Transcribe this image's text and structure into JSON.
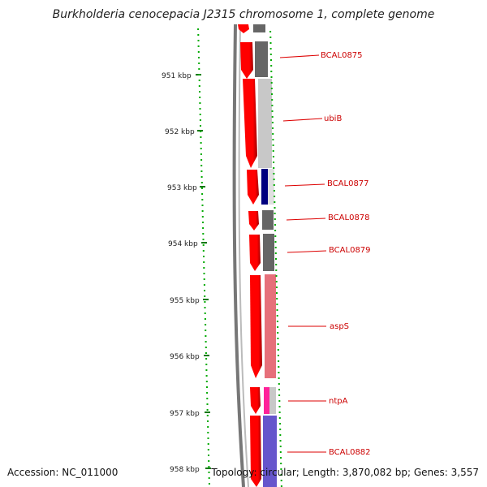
{
  "title": "Burkholderia cenocepacia J2315 chromosome 1, complete genome",
  "footer": {
    "accession": "Accession: NC_011000",
    "stats": "Topology: circular; Length: 3,870,082 bp; Genes: 3,557"
  },
  "ruler": {
    "ticks": [
      "951 kbp",
      "952 kbp",
      "953 kbp",
      "954 kbp",
      "955 kbp",
      "956 kbp",
      "957 kbp",
      "958 kbp"
    ]
  },
  "genes": [
    {
      "label": "",
      "color": "#666666"
    },
    {
      "label": "BCAL0875",
      "color": "#666666"
    },
    {
      "label": "ubiB",
      "color": "#c8c8c8"
    },
    {
      "label": "BCAL0877",
      "color": "#00007f"
    },
    {
      "label": "BCAL0878",
      "color": "#666666"
    },
    {
      "label": "BCAL0879",
      "color": "#666666"
    },
    {
      "label": "aspS",
      "color": "#e6707a"
    },
    {
      "label": "ntpA",
      "color": "#ff2299"
    },
    {
      "label": "BCAL0882",
      "color": "#6655cc"
    }
  ],
  "colors": {
    "forward_strand": "#ff0000",
    "backbone": "#888888",
    "tick_major": "#007700",
    "tick_minor": "#00aa00",
    "label_line": "#dd0000"
  }
}
